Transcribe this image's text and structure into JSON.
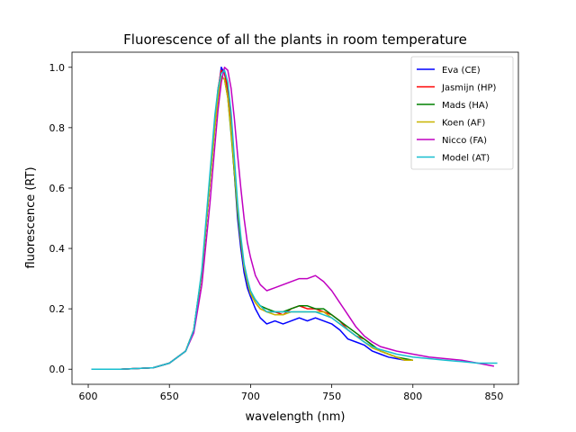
{
  "chart_data": {
    "type": "line",
    "title": "Fluorescence of all the plants in room temperature",
    "xlabel": "wavelength (nm)",
    "ylabel": "fluorescence (RT)",
    "xlim": [
      590,
      865
    ],
    "ylim": [
      -0.05,
      1.05
    ],
    "xticks": [
      600,
      650,
      700,
      750,
      800,
      850
    ],
    "yticks": [
      0.0,
      0.2,
      0.4,
      0.6,
      0.8,
      1.0
    ],
    "xtick_labels": [
      "600",
      "650",
      "700",
      "750",
      "800",
      "850"
    ],
    "ytick_labels": [
      "0.0",
      "0.2",
      "0.4",
      "0.6",
      "0.8",
      "1.0"
    ],
    "grid": false,
    "legend_position": "top-right",
    "series": [
      {
        "name": "Eva (CE)",
        "color": "#0000ff",
        "x": [
          602,
          620,
          640,
          650,
          660,
          665,
          670,
          675,
          678,
          680,
          682,
          684,
          686,
          688,
          690,
          692,
          694,
          696,
          698,
          700,
          703,
          706,
          710,
          715,
          720,
          725,
          730,
          735,
          740,
          745,
          750,
          755,
          760,
          765,
          770,
          775,
          780,
          785,
          790,
          795,
          800
        ],
        "y": [
          0.0,
          0.0,
          0.005,
          0.02,
          0.06,
          0.13,
          0.32,
          0.62,
          0.82,
          0.92,
          1.0,
          0.98,
          0.92,
          0.8,
          0.65,
          0.5,
          0.4,
          0.32,
          0.27,
          0.24,
          0.2,
          0.17,
          0.15,
          0.16,
          0.15,
          0.16,
          0.17,
          0.16,
          0.17,
          0.16,
          0.15,
          0.13,
          0.1,
          0.09,
          0.08,
          0.06,
          0.05,
          0.04,
          0.035,
          0.03,
          0.03
        ]
      },
      {
        "name": "Jasmijn (HP)",
        "color": "#ff0000",
        "x": [
          602,
          620,
          640,
          650,
          660,
          665,
          670,
          675,
          678,
          680,
          682,
          684,
          686,
          688,
          690,
          692,
          694,
          696,
          698,
          700,
          703,
          706,
          710,
          715,
          720,
          725,
          730,
          735,
          740,
          745,
          750,
          755,
          760,
          765,
          770,
          775,
          780,
          785,
          790,
          795,
          800
        ],
        "y": [
          0.0,
          0.0,
          0.005,
          0.02,
          0.06,
          0.13,
          0.32,
          0.62,
          0.82,
          0.93,
          0.99,
          0.98,
          0.93,
          0.82,
          0.68,
          0.53,
          0.42,
          0.34,
          0.29,
          0.25,
          0.22,
          0.2,
          0.19,
          0.19,
          0.18,
          0.2,
          0.21,
          0.2,
          0.2,
          0.19,
          0.18,
          0.16,
          0.13,
          0.11,
          0.1,
          0.08,
          0.06,
          0.05,
          0.04,
          0.03,
          0.03
        ]
      },
      {
        "name": "Mads (HA)",
        "color": "#008000",
        "x": [
          602,
          620,
          640,
          650,
          660,
          665,
          670,
          675,
          678,
          680,
          682,
          684,
          686,
          688,
          690,
          692,
          694,
          696,
          698,
          700,
          703,
          706,
          710,
          715,
          720,
          725,
          730,
          735,
          740,
          745,
          750,
          755,
          760,
          765,
          770,
          775,
          780,
          785,
          790,
          795,
          800
        ],
        "y": [
          0.0,
          0.0,
          0.005,
          0.02,
          0.06,
          0.13,
          0.32,
          0.62,
          0.8,
          0.9,
          0.97,
          0.96,
          0.9,
          0.78,
          0.65,
          0.52,
          0.42,
          0.34,
          0.29,
          0.25,
          0.23,
          0.21,
          0.2,
          0.19,
          0.19,
          0.2,
          0.21,
          0.21,
          0.2,
          0.2,
          0.18,
          0.16,
          0.14,
          0.12,
          0.1,
          0.08,
          0.06,
          0.05,
          0.04,
          0.035,
          0.03
        ]
      },
      {
        "name": "Koen (AF)",
        "color": "#c8b400",
        "x": [
          602,
          620,
          640,
          650,
          660,
          665,
          670,
          675,
          678,
          680,
          682,
          684,
          686,
          688,
          690,
          692,
          694,
          696,
          698,
          700,
          703,
          706,
          710,
          715,
          720,
          725,
          730,
          735,
          740,
          745,
          750,
          755,
          760,
          765,
          770,
          775,
          780,
          785,
          790,
          795,
          800
        ],
        "y": [
          0.0,
          0.0,
          0.005,
          0.02,
          0.06,
          0.13,
          0.32,
          0.62,
          0.8,
          0.9,
          0.97,
          0.96,
          0.9,
          0.79,
          0.66,
          0.53,
          0.43,
          0.34,
          0.29,
          0.25,
          0.22,
          0.2,
          0.19,
          0.18,
          0.18,
          0.19,
          0.19,
          0.19,
          0.19,
          0.19,
          0.17,
          0.15,
          0.13,
          0.11,
          0.09,
          0.07,
          0.06,
          0.05,
          0.04,
          0.03,
          0.03
        ]
      },
      {
        "name": "Nicco (FA)",
        "color": "#c000c0",
        "x": [
          602,
          620,
          640,
          650,
          660,
          665,
          670,
          675,
          678,
          680,
          682,
          684,
          686,
          688,
          690,
          692,
          694,
          696,
          698,
          700,
          703,
          706,
          710,
          715,
          720,
          725,
          730,
          735,
          740,
          745,
          750,
          755,
          760,
          765,
          770,
          775,
          780,
          790,
          800,
          810,
          820,
          830,
          840,
          850
        ],
        "y": [
          0.0,
          0.0,
          0.005,
          0.02,
          0.06,
          0.12,
          0.28,
          0.55,
          0.74,
          0.86,
          0.95,
          1.0,
          0.99,
          0.93,
          0.83,
          0.71,
          0.6,
          0.5,
          0.42,
          0.37,
          0.31,
          0.28,
          0.26,
          0.27,
          0.28,
          0.29,
          0.3,
          0.3,
          0.31,
          0.29,
          0.26,
          0.22,
          0.18,
          0.14,
          0.11,
          0.09,
          0.075,
          0.06,
          0.05,
          0.04,
          0.035,
          0.03,
          0.02,
          0.01
        ]
      },
      {
        "name": "Model (AT)",
        "color": "#17becf",
        "x": [
          602,
          620,
          640,
          650,
          660,
          665,
          670,
          675,
          678,
          680,
          682,
          684,
          686,
          688,
          690,
          692,
          694,
          696,
          698,
          700,
          703,
          706,
          710,
          715,
          720,
          725,
          730,
          735,
          740,
          745,
          750,
          755,
          760,
          765,
          770,
          775,
          780,
          790,
          800,
          810,
          820,
          830,
          840,
          852
        ],
        "y": [
          0.0,
          0.0,
          0.005,
          0.02,
          0.06,
          0.13,
          0.33,
          0.65,
          0.84,
          0.93,
          0.98,
          0.99,
          0.95,
          0.85,
          0.7,
          0.55,
          0.44,
          0.35,
          0.3,
          0.26,
          0.23,
          0.21,
          0.19,
          0.19,
          0.19,
          0.19,
          0.19,
          0.19,
          0.19,
          0.18,
          0.17,
          0.15,
          0.13,
          0.11,
          0.09,
          0.075,
          0.065,
          0.05,
          0.04,
          0.035,
          0.03,
          0.025,
          0.02,
          0.02
        ]
      }
    ]
  }
}
